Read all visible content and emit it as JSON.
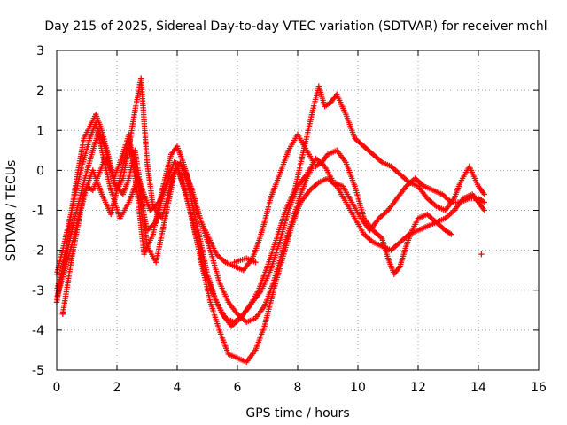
{
  "chart_data": {
    "type": "scatter",
    "title": "Day 215 of 2025, Sidereal Day-to-day VTEC variation (SDTVAR) for receiver mchl",
    "xlabel": "GPS time / hours",
    "ylabel": "SDTVAR / TECUs",
    "xlim": [
      0,
      16
    ],
    "ylim": [
      -5,
      3
    ],
    "xticks": [
      0,
      2,
      4,
      6,
      8,
      10,
      12,
      14,
      16
    ],
    "yticks": [
      -5,
      -4,
      -3,
      -2,
      -1,
      0,
      1,
      2,
      3
    ],
    "grid": true,
    "marker": "plus",
    "color": "#ff0000",
    "series": [
      {
        "x": [
          0.0,
          0.3,
          0.6,
          0.9,
          1.1,
          1.3,
          1.5,
          1.7,
          1.9,
          2.1,
          2.4,
          2.7,
          2.9,
          3.2,
          3.5,
          3.8,
          4.0,
          4.2,
          4.5,
          4.8,
          5.0,
          5.3,
          5.6,
          5.9,
          6.2,
          6.5,
          6.7,
          6.9,
          7.1,
          7.4,
          7.7,
          8.0,
          8.3,
          8.6,
          8.8,
          9.0,
          9.3,
          9.6,
          9.9,
          10.2,
          10.5,
          10.8,
          11.0,
          11.2,
          11.4,
          11.6,
          11.8,
          12.0,
          12.3,
          12.6,
          12.9,
          13.1
        ],
        "y": [
          -3.3,
          -2.0,
          -0.5,
          0.8,
          1.1,
          1.4,
          1.0,
          0.4,
          -0.2,
          0.2,
          0.9,
          -0.7,
          -2.1,
          -1.6,
          -0.5,
          0.4,
          0.6,
          0.2,
          -0.6,
          -1.3,
          -1.6,
          -2.1,
          -2.3,
          -2.4,
          -2.5,
          -2.2,
          -1.8,
          -1.3,
          -0.7,
          -0.1,
          0.5,
          0.9,
          0.5,
          0.1,
          0.2,
          0.4,
          0.5,
          0.2,
          -0.4,
          -1.2,
          -1.5,
          -1.7,
          -2.2,
          -2.6,
          -2.4,
          -1.9,
          -1.5,
          -1.2,
          -1.1,
          -1.3,
          -1.5,
          -1.6
        ]
      },
      {
        "x": [
          0.0,
          0.3,
          0.6,
          0.9,
          1.2,
          1.4,
          1.6,
          1.9,
          2.2,
          2.4,
          2.6,
          2.8,
          3.0,
          3.3,
          3.6,
          3.9,
          4.1,
          4.4,
          4.7,
          5.0,
          5.3,
          5.6,
          5.9,
          6.2,
          6.5,
          6.8,
          7.1,
          7.4,
          7.7,
          8.0,
          8.3,
          8.6,
          8.9,
          9.2,
          9.5,
          9.8,
          10.1,
          10.4,
          10.7,
          11.0,
          11.3,
          11.6,
          11.9,
          12.2,
          12.5,
          12.8,
          13.1,
          13.4,
          13.7,
          14.0,
          14.2
        ],
        "y": [
          -3.0,
          -2.2,
          -1.2,
          -0.3,
          0.5,
          1.0,
          0.6,
          -0.3,
          -0.6,
          -0.2,
          0.5,
          -0.5,
          -1.9,
          -2.3,
          -1.2,
          -0.1,
          0.2,
          -0.5,
          -1.5,
          -2.6,
          -3.3,
          -3.7,
          -3.8,
          -3.6,
          -3.3,
          -3.0,
          -2.5,
          -1.8,
          -1.0,
          -0.4,
          -0.1,
          0.3,
          0.1,
          -0.3,
          -0.4,
          -0.8,
          -1.2,
          -1.5,
          -1.2,
          -1.0,
          -0.7,
          -0.4,
          -0.2,
          -0.4,
          -0.5,
          -0.6,
          -0.8,
          -0.8,
          -0.7,
          -0.7,
          -0.8
        ]
      },
      {
        "x": [
          0.2,
          0.5,
          0.8,
          1.0,
          1.2,
          1.4,
          1.6,
          1.8,
          2.0,
          2.2,
          2.4,
          2.6,
          2.8,
          3.0,
          3.2,
          3.5,
          3.8,
          4.0,
          4.2,
          4.5,
          4.8,
          5.1,
          5.4,
          5.7,
          6.0,
          6.3,
          6.6,
          6.9,
          7.2,
          7.5,
          7.8,
          8.1,
          8.4,
          8.7,
          9.0,
          9.3,
          9.6,
          9.9,
          10.2,
          10.5,
          10.8,
          11.1,
          11.4,
          11.7,
          12.0,
          12.3,
          12.6,
          12.9,
          13.2,
          13.5,
          13.8,
          14.0,
          14.2
        ],
        "y": [
          -3.6,
          -2.2,
          -1.0,
          -0.4,
          -0.5,
          -0.1,
          0.3,
          0.0,
          -0.5,
          -0.2,
          0.6,
          1.5,
          2.3,
          0.2,
          -0.9,
          -1.2,
          -0.3,
          0.1,
          -0.4,
          -1.2,
          -2.3,
          -3.3,
          -4.0,
          -4.6,
          -4.7,
          -4.8,
          -4.5,
          -3.9,
          -3.0,
          -2.2,
          -1.4,
          -0.8,
          -0.5,
          -0.3,
          -0.2,
          -0.4,
          -0.8,
          -1.2,
          -1.6,
          -1.8,
          -1.9,
          -2.0,
          -1.8,
          -1.6,
          -1.5,
          -1.4,
          -1.3,
          -1.2,
          -1.0,
          -0.7,
          -0.6,
          -0.8,
          -1.0
        ]
      },
      {
        "x": [
          0.0,
          0.2,
          0.5,
          0.8,
          1.1,
          1.3,
          1.5,
          1.8,
          2.1,
          2.4,
          2.7,
          2.9,
          3.1,
          3.4,
          3.7,
          4.0,
          4.3,
          4.6,
          4.9,
          5.2,
          5.5,
          5.8,
          6.1,
          6.4,
          6.7,
          7.0,
          7.3,
          7.6,
          7.9,
          8.2,
          8.5,
          8.7,
          8.9,
          9.1,
          9.3,
          9.6,
          9.9,
          10.2,
          10.5,
          10.8,
          11.1,
          11.4,
          11.7,
          12.0,
          12.3,
          12.6,
          12.9,
          13.2,
          13.4,
          13.7,
          14.0,
          14.2
        ],
        "y": [
          -2.6,
          -2.0,
          -1.0,
          0.0,
          0.8,
          1.2,
          0.5,
          -0.5,
          -1.2,
          -0.8,
          -0.2,
          -0.6,
          -1.0,
          -0.8,
          -0.3,
          0.1,
          -0.6,
          -1.6,
          -2.5,
          -3.1,
          -3.6,
          -3.9,
          -3.7,
          -3.4,
          -3.0,
          -2.4,
          -1.7,
          -1.0,
          -0.5,
          0.5,
          1.5,
          2.1,
          1.6,
          1.7,
          1.9,
          1.4,
          0.8,
          0.6,
          0.4,
          0.2,
          0.1,
          -0.1,
          -0.3,
          -0.4,
          -0.7,
          -0.9,
          -1.0,
          -0.7,
          -0.3,
          0.1,
          -0.4,
          -0.6
        ]
      },
      {
        "x": [
          0.0,
          0.3,
          0.6,
          0.9,
          1.2,
          1.5,
          1.8,
          2.1,
          2.4,
          2.7,
          3.0,
          3.3,
          3.6,
          3.9,
          4.2,
          4.5,
          4.8,
          5.1,
          5.4,
          5.7,
          6.0,
          6.3,
          6.6,
          6.9,
          7.2,
          7.5,
          7.8,
          8.1,
          8.3,
          8.5
        ],
        "y": [
          -3.2,
          -2.4,
          -1.6,
          -0.6,
          0.0,
          -0.6,
          -1.1,
          -0.2,
          0.7,
          -0.3,
          -1.5,
          -1.3,
          -0.4,
          0.2,
          0.1,
          -0.5,
          -1.3,
          -2.0,
          -2.8,
          -3.3,
          -3.6,
          -3.8,
          -3.7,
          -3.4,
          -2.8,
          -2.0,
          -1.3,
          -0.6,
          -0.2,
          0.1
        ]
      },
      {
        "x": [
          5.9,
          6.3,
          6.6
        ],
        "y": [
          -2.3,
          -2.2,
          -2.3
        ]
      },
      {
        "x": [
          14.1
        ],
        "y": [
          -2.1
        ]
      }
    ]
  }
}
